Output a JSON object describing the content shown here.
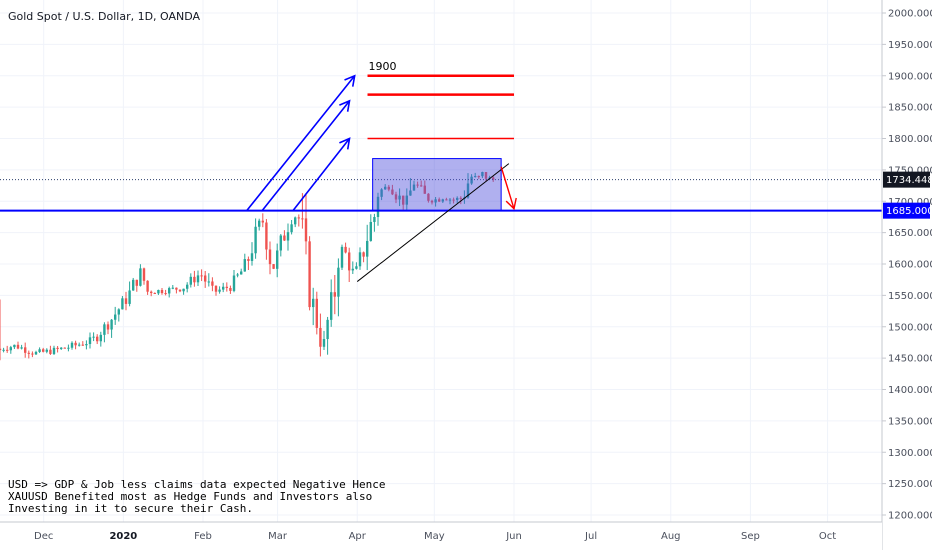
{
  "chart_data": {
    "type": "candlestick",
    "title": "Gold Spot / U.S. Dollar, 1D, OANDA",
    "y_axis": {
      "range": [
        1195,
        2020
      ],
      "ticks": [
        "2000.000",
        "1950.000",
        "1900.000",
        "1850.000",
        "1800.000",
        "1750.000",
        "1700.000",
        "1650.000",
        "1600.000",
        "1550.000",
        "1500.000",
        "1450.000",
        "1400.000",
        "1350.000",
        "1300.000",
        "1250.000",
        "1200.000"
      ]
    },
    "x_axis": {
      "ticks": [
        {
          "date": "2019-12-01",
          "label": "Dec",
          "bold": false
        },
        {
          "date": "2020-01-01",
          "label": "2020",
          "bold": true
        },
        {
          "date": "2020-02-01",
          "label": "Feb",
          "bold": false
        },
        {
          "date": "2020-03-01",
          "label": "Mar",
          "bold": false
        },
        {
          "date": "2020-04-01",
          "label": "Apr",
          "bold": false
        },
        {
          "date": "2020-05-01",
          "label": "May",
          "bold": false
        },
        {
          "date": "2020-06-01",
          "label": "Jun",
          "bold": false
        },
        {
          "date": "2020-07-01",
          "label": "Jul",
          "bold": false
        },
        {
          "date": "2020-08-01",
          "label": "Aug",
          "bold": false
        },
        {
          "date": "2020-09-01",
          "label": "Sep",
          "bold": false
        },
        {
          "date": "2020-10-01",
          "label": "Oct",
          "bold": false
        }
      ]
    },
    "close_path": [
      [
        "2019-11-14",
        1465
      ],
      [
        "2019-11-20",
        1470
      ],
      [
        "2019-11-28",
        1458
      ],
      [
        "2019-12-05",
        1462
      ],
      [
        "2019-12-13",
        1470
      ],
      [
        "2019-12-20",
        1478
      ],
      [
        "2019-12-27",
        1510
      ],
      [
        "2020-01-03",
        1550
      ],
      [
        "2020-01-08",
        1592
      ],
      [
        "2020-01-10",
        1556
      ],
      [
        "2020-01-17",
        1558
      ],
      [
        "2020-01-24",
        1562
      ],
      [
        "2020-01-31",
        1585
      ],
      [
        "2020-02-05",
        1555
      ],
      [
        "2020-02-12",
        1565
      ],
      [
        "2020-02-18",
        1600
      ],
      [
        "2020-02-21",
        1640
      ],
      [
        "2020-02-24",
        1672
      ],
      [
        "2020-02-26",
        1640
      ],
      [
        "2020-02-28",
        1588
      ],
      [
        "2020-03-03",
        1640
      ],
      [
        "2020-03-06",
        1672
      ],
      [
        "2020-03-09",
        1678
      ],
      [
        "2020-03-11",
        1640
      ],
      [
        "2020-03-13",
        1565
      ],
      [
        "2020-03-16",
        1515
      ],
      [
        "2020-03-18",
        1475
      ],
      [
        "2020-03-19",
        1470
      ],
      [
        "2020-03-20",
        1498
      ],
      [
        "2020-03-23",
        1550
      ],
      [
        "2020-03-25",
        1630
      ],
      [
        "2020-03-27",
        1620
      ],
      [
        "2020-03-31",
        1580
      ],
      [
        "2020-04-03",
        1615
      ],
      [
        "2020-04-06",
        1660
      ],
      [
        "2020-04-08",
        1680
      ],
      [
        "2020-04-09",
        1715
      ],
      [
        "2020-04-14",
        1725
      ],
      [
        "2020-04-16",
        1712
      ],
      [
        "2020-04-20",
        1695
      ],
      [
        "2020-04-23",
        1730
      ],
      [
        "2020-04-28",
        1705
      ],
      [
        "2020-05-01",
        1702
      ],
      [
        "2020-05-05",
        1708
      ],
      [
        "2020-05-08",
        1702
      ],
      [
        "2020-05-12",
        1705
      ],
      [
        "2020-05-15",
        1740
      ],
      [
        "2020-05-18",
        1735
      ],
      [
        "2020-05-20",
        1745
      ],
      [
        "2020-05-22",
        1735
      ],
      [
        "2020-05-25",
        1734
      ]
    ],
    "current_price": {
      "label": "1734.448",
      "value": 1734.448,
      "color": "#131722"
    },
    "drawings": {
      "support_line": {
        "label": "1685.000",
        "value": 1685,
        "color": "#0000ff"
      },
      "resistance_lines": [
        {
          "value": 1900,
          "color": "#ff0000"
        },
        {
          "value": 1870,
          "color": "#ff0000"
        },
        {
          "value": 1800,
          "color": "#ff0000"
        }
      ],
      "target_label": {
        "text": "1900",
        "date": "2020-04-05",
        "value": 1900
      },
      "range_box": {
        "start": "2020-04-07",
        "end": "2020-05-27",
        "top": 1768,
        "bottom": 1685,
        "color": "#0000ff"
      },
      "trend_line": {
        "start": [
          "2020-04-01",
          1572
        ],
        "end": [
          "2020-05-30",
          1760
        ],
        "color": "#000000"
      },
      "up_arrows": [
        {
          "start": [
            "2020-02-18",
            1685
          ],
          "end": [
            "2020-03-31",
            1900
          ]
        },
        {
          "start": [
            "2020-02-24",
            1685
          ],
          "end": [
            "2020-03-29",
            1860
          ]
        },
        {
          "start": [
            "2020-03-07",
            1685
          ],
          "end": [
            "2020-03-29",
            1800
          ]
        }
      ],
      "down_arrow": {
        "start": [
          "2020-05-27",
          1755
        ],
        "end": [
          "2020-06-01",
          1688
        ],
        "color": "#ff0000"
      }
    },
    "annotation": [
      "USD => GDP & Job less claims data expected Negative Hence",
      "XAUUSD Benefited most as Hedge Funds and Investors also",
      "Investing in it to secure their Cash."
    ],
    "colors": {
      "up": "#26a69a",
      "down": "#ef5350",
      "blue": "#0000ff",
      "red": "#ff0000"
    }
  }
}
